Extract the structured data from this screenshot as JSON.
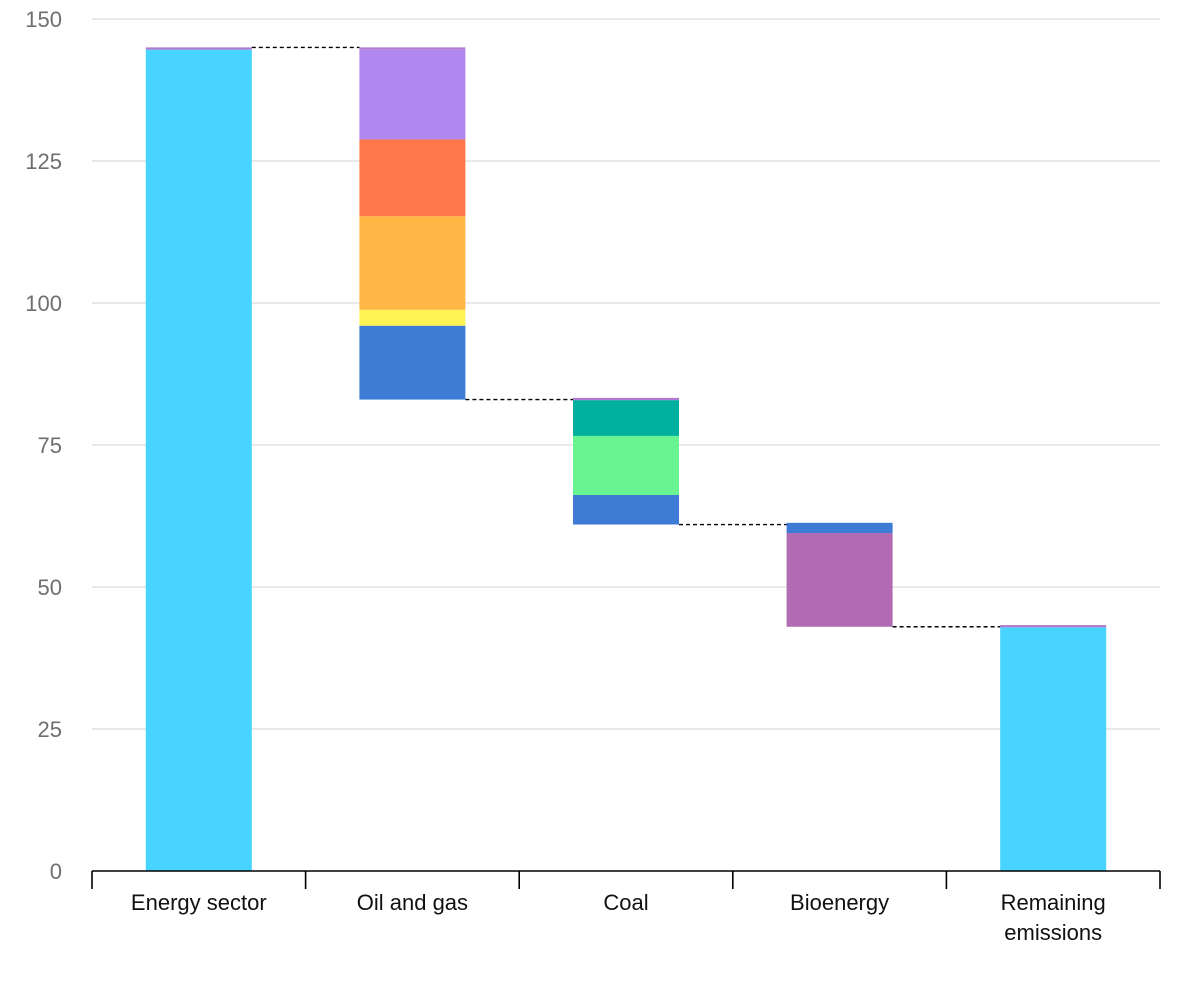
{
  "chart_data": {
    "type": "bar",
    "subtype": "waterfall",
    "title": "",
    "xlabel": "",
    "ylabel": "",
    "ylim": [
      0,
      150
    ],
    "yticks": [
      0,
      25,
      50,
      75,
      100,
      125,
      150
    ],
    "grid": true,
    "legend": "none",
    "categories": [
      [
        "Energy sector"
      ],
      [
        "Oil and gas"
      ],
      [
        "Coal"
      ],
      [
        "Bioenergy"
      ],
      [
        "Remaining",
        "emissions"
      ]
    ],
    "bars": [
      {
        "segments": [
          {
            "from": 0,
            "to": 144.6,
            "color": "#47d4ff"
          },
          {
            "from": 144.6,
            "to": 145,
            "color": "#b07ad1"
          }
        ]
      },
      {
        "segments": [
          {
            "from": 83,
            "to": 96,
            "color": "#3d7bd4"
          },
          {
            "from": 96,
            "to": 98.8,
            "color": "#fff352"
          },
          {
            "from": 98.8,
            "to": 115.3,
            "color": "#ffb745"
          },
          {
            "from": 115.3,
            "to": 128.8,
            "color": "#ff774a"
          },
          {
            "from": 128.8,
            "to": 144.6,
            "color": "#b187ef"
          },
          {
            "from": 144.6,
            "to": 145,
            "color": "#b07ad1"
          }
        ]
      },
      {
        "segments": [
          {
            "from": 61,
            "to": 66.2,
            "color": "#3d7bd4"
          },
          {
            "from": 66.2,
            "to": 76.6,
            "color": "#68f591"
          },
          {
            "from": 76.6,
            "to": 82.9,
            "color": "#00b09f"
          },
          {
            "from": 82.9,
            "to": 83.3,
            "color": "#b07ad1"
          }
        ]
      },
      {
        "segments": [
          {
            "from": 43,
            "to": 59.5,
            "color": "#b06bb3"
          },
          {
            "from": 59.5,
            "to": 61.3,
            "color": "#3d7bd4"
          }
        ]
      },
      {
        "segments": [
          {
            "from": 0,
            "to": 42.9,
            "color": "#47d4ff"
          },
          {
            "from": 42.9,
            "to": 43.3,
            "color": "#b07ad1"
          }
        ]
      }
    ],
    "connectors": [
      {
        "from_bar": 0,
        "to_bar": 1,
        "value": 145
      },
      {
        "from_bar": 1,
        "to_bar": 2,
        "value": 83
      },
      {
        "from_bar": 2,
        "to_bar": 3,
        "value": 61
      },
      {
        "from_bar": 3,
        "to_bar": 4,
        "value": 43
      }
    ]
  }
}
